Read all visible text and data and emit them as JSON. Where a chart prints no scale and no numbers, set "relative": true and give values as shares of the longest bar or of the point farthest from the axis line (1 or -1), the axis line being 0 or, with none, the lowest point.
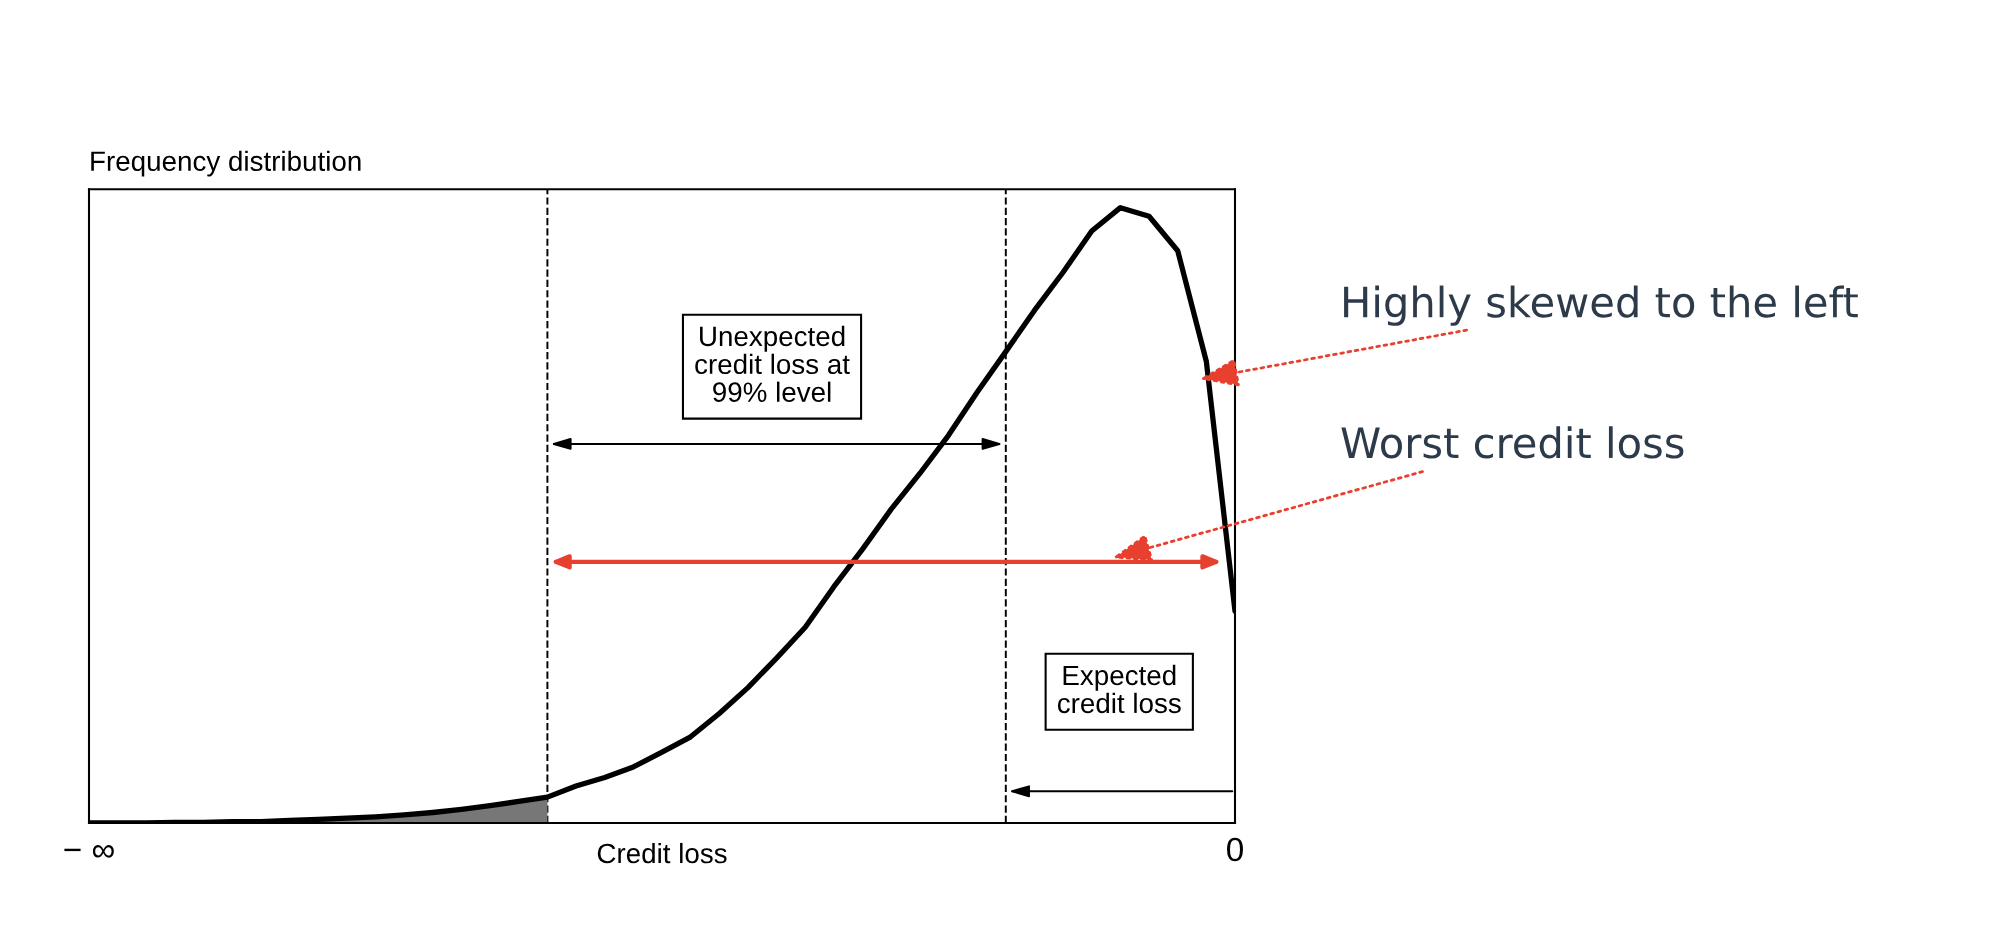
{
  "chart_data": {
    "type": "line",
    "relative": true,
    "xlabel": "Credit loss",
    "ylabel": "Frequency distribution",
    "categories": [
      "− ∞",
      null,
      null,
      null,
      null,
      null,
      null,
      null,
      null,
      null,
      null,
      null,
      null,
      null,
      null,
      null,
      null,
      null,
      null,
      null,
      null,
      null,
      null,
      null,
      null,
      null,
      null,
      null,
      null,
      null,
      null,
      null,
      null,
      null,
      null,
      null,
      null,
      null,
      null,
      null,
      "0"
    ],
    "series": [
      {
        "type": "area",
        "color": "#777777",
        "values": [
          0,
          0,
          0,
          0.001,
          0.001,
          0.002,
          0.002,
          0.004,
          0.006,
          0.008,
          0.01,
          0.013,
          0.017,
          0.022,
          0.028,
          0.035,
          0.042,
          null,
          null,
          null,
          null,
          null,
          null,
          null,
          null,
          null,
          null,
          null,
          null,
          null,
          null,
          null,
          null,
          null,
          null,
          null,
          null,
          null,
          null,
          null,
          null
        ]
      },
      {
        "color": "#000000",
        "values": [
          0,
          0,
          0,
          0.001,
          0.001,
          0.002,
          0.002,
          0.004,
          0.006,
          0.008,
          0.01,
          0.013,
          0.017,
          0.022,
          0.028,
          0.035,
          0.042,
          0.06,
          0.074,
          0.091,
          0.115,
          0.14,
          0.178,
          0.22,
          0.268,
          0.318,
          0.384,
          0.445,
          0.51,
          0.568,
          0.63,
          0.7,
          0.766,
          0.833,
          0.895,
          0.962,
          1.0,
          0.986,
          0.93,
          0.75,
          0.344
        ]
      }
    ],
    "annotations": [
      "Unexpected\ncredit loss at\n99% level",
      "Expected\ncredit loss",
      "Highly skewed to the left",
      "Worst credit loss"
    ],
    "line_style": "solid"
  }
}
